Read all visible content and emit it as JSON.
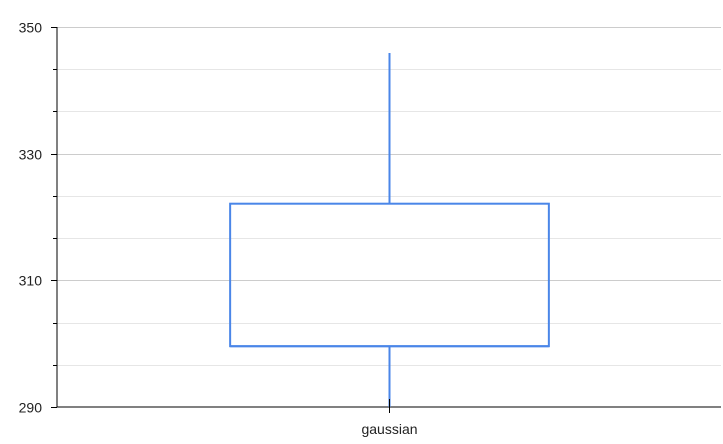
{
  "chart_data": {
    "type": "box",
    "categories": [
      "gaussian"
    ],
    "series": [
      {
        "values": [
          {
            "min": 290,
            "q1": 299.6,
            "median": 299.6,
            "q3": 322.1,
            "max": 345.9
          }
        ]
      }
    ],
    "ylim": [
      290,
      350
    ],
    "y_major_ticks": [
      290,
      310,
      330,
      350
    ],
    "y_major_tick_labels": [
      "290",
      "310",
      "330",
      "350"
    ],
    "y_minor_ticks": [
      296.67,
      303.33,
      316.67,
      323.33,
      336.67,
      343.33
    ],
    "grid": true,
    "title": "",
    "xlabel": "",
    "ylabel": "",
    "colors": {
      "box": "#4a86e8",
      "grid_major": "#cccccc",
      "grid_minor": "#e6e6e6",
      "axis": "#000000"
    }
  }
}
